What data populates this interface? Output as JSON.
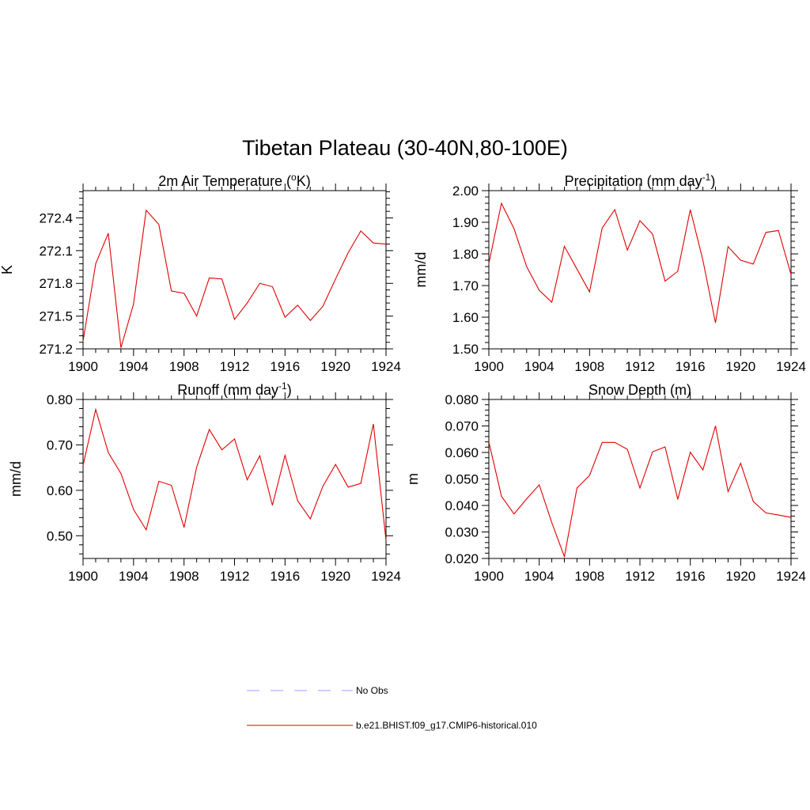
{
  "title": "Tibetan Plateau (30-40N,80-100E)",
  "colors": {
    "series": "#e00000",
    "obs": "#9aa0ff",
    "axis": "#000000"
  },
  "legend": {
    "entries": [
      {
        "label": "No Obs",
        "style": "dashed",
        "color": "#9aa0ff"
      },
      {
        "label": "b.e21.BHIST.f09_g17.CMIP6-historical.010",
        "style": "solid",
        "color": "#e00000"
      }
    ]
  },
  "chart_data": [
    {
      "type": "line",
      "title_main": "2m Air Temperature (",
      "title_sup": "o",
      "title_tail": "K)",
      "ylabel": "K",
      "xlim": [
        1900,
        1924
      ],
      "ylim": [
        271.2,
        272.65
      ],
      "xticks": [
        1900,
        1904,
        1908,
        1912,
        1916,
        1920,
        1924
      ],
      "yticks": [
        271.2,
        271.5,
        271.8,
        272.1,
        272.4
      ],
      "ytick_labels": [
        "271.2",
        "271.5",
        "271.8",
        "272.1",
        "272.4"
      ],
      "x": [
        1900,
        1901,
        1902,
        1903,
        1904,
        1905,
        1906,
        1907,
        1908,
        1909,
        1910,
        1911,
        1912,
        1913,
        1914,
        1915,
        1916,
        1917,
        1918,
        1919,
        1920,
        1921,
        1922,
        1923,
        1924
      ],
      "values": [
        271.27,
        271.98,
        272.26,
        271.21,
        271.61,
        272.47,
        272.34,
        271.73,
        271.71,
        271.5,
        271.85,
        271.84,
        271.47,
        271.62,
        271.8,
        271.77,
        271.49,
        271.6,
        271.46,
        271.59,
        271.84,
        272.08,
        272.28,
        272.17,
        272.16
      ]
    },
    {
      "type": "line",
      "title_main": "Precipitation (mm day",
      "title_sup": "-1",
      "title_tail": ")",
      "ylabel": "mm/d",
      "xlim": [
        1900,
        1924
      ],
      "ylim": [
        1.5,
        2.0
      ],
      "xticks": [
        1900,
        1904,
        1908,
        1912,
        1916,
        1920,
        1924
      ],
      "yticks": [
        1.5,
        1.6,
        1.7,
        1.8,
        1.9,
        2.0
      ],
      "ytick_labels": [
        "1.50",
        "1.60",
        "1.70",
        "1.80",
        "1.90",
        "2.00"
      ],
      "x": [
        1900,
        1901,
        1902,
        1903,
        1904,
        1905,
        1906,
        1907,
        1908,
        1909,
        1910,
        1911,
        1912,
        1913,
        1914,
        1915,
        1916,
        1917,
        1918,
        1919,
        1920,
        1921,
        1922,
        1923,
        1924
      ],
      "values": [
        1.77,
        1.96,
        1.88,
        1.76,
        1.685,
        1.647,
        1.824,
        1.752,
        1.68,
        1.882,
        1.94,
        1.812,
        1.905,
        1.863,
        1.714,
        1.745,
        1.94,
        1.78,
        1.582,
        1.823,
        1.78,
        1.768,
        1.868,
        1.874,
        1.735
      ]
    },
    {
      "type": "line",
      "title_main": "Runoff (mm day",
      "title_sup": "-1",
      "title_tail": ")",
      "ylabel": "mm/d",
      "xlim": [
        1900,
        1924
      ],
      "ylim": [
        0.45,
        0.8
      ],
      "xticks": [
        1900,
        1904,
        1908,
        1912,
        1916,
        1920,
        1924
      ],
      "yticks": [
        0.5,
        0.6,
        0.7,
        0.8
      ],
      "ytick_labels": [
        "0.50",
        "0.60",
        "0.70",
        "0.80"
      ],
      "x": [
        1900,
        1901,
        1902,
        1903,
        1904,
        1905,
        1906,
        1907,
        1908,
        1909,
        1910,
        1911,
        1912,
        1913,
        1914,
        1915,
        1916,
        1917,
        1918,
        1919,
        1920,
        1921,
        1922,
        1923,
        1924
      ],
      "values": [
        0.655,
        0.778,
        0.683,
        0.637,
        0.558,
        0.513,
        0.62,
        0.611,
        0.518,
        0.651,
        0.734,
        0.689,
        0.713,
        0.623,
        0.676,
        0.567,
        0.677,
        0.577,
        0.537,
        0.609,
        0.657,
        0.607,
        0.615,
        0.746,
        0.49
      ]
    },
    {
      "type": "line",
      "title_main": "Snow Depth (m)",
      "title_sup": "",
      "title_tail": "",
      "ylabel": "m",
      "xlim": [
        1900,
        1924
      ],
      "ylim": [
        0.02,
        0.08
      ],
      "xticks": [
        1900,
        1904,
        1908,
        1912,
        1916,
        1920,
        1924
      ],
      "yticks": [
        0.02,
        0.03,
        0.04,
        0.05,
        0.06,
        0.07,
        0.08
      ],
      "ytick_labels": [
        "0.020",
        "0.030",
        "0.040",
        "0.050",
        "0.060",
        "0.070",
        "0.080"
      ],
      "x": [
        1900,
        1901,
        1902,
        1903,
        1904,
        1905,
        1906,
        1907,
        1908,
        1909,
        1910,
        1911,
        1912,
        1913,
        1914,
        1915,
        1916,
        1917,
        1918,
        1919,
        1920,
        1921,
        1922,
        1923,
        1924
      ],
      "values": [
        0.064,
        0.0435,
        0.0368,
        0.0425,
        0.0478,
        0.0335,
        0.0207,
        0.0466,
        0.0513,
        0.0638,
        0.0638,
        0.0612,
        0.0466,
        0.0602,
        0.0621,
        0.0423,
        0.0601,
        0.0534,
        0.07,
        0.0452,
        0.0559,
        0.0415,
        0.0372,
        0.0364,
        0.0355
      ]
    }
  ]
}
